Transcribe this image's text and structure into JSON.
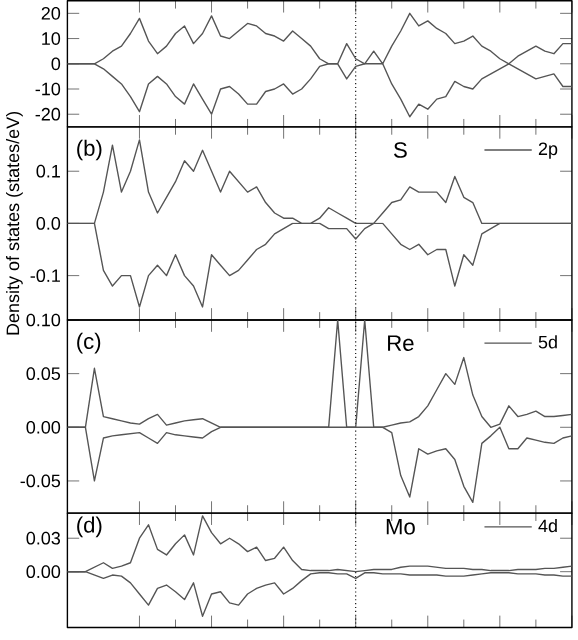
{
  "chart_data": [
    {
      "type": "line",
      "ylim": [
        -25,
        25
      ],
      "yticks": [
        -20,
        -10,
        0,
        10,
        20
      ],
      "categories": [
        null,
        null,
        null,
        null,
        null,
        null,
        null,
        null,
        null,
        null,
        null,
        null,
        null,
        null,
        null,
        null,
        null,
        null,
        null,
        null,
        null,
        null,
        null,
        null,
        null,
        null,
        null,
        null,
        null,
        null,
        null,
        null,
        null,
        null,
        null,
        null,
        null,
        null,
        null,
        null,
        null,
        null,
        null,
        null,
        null,
        null,
        null,
        null,
        null,
        null,
        null,
        null,
        null,
        null,
        null,
        null,
        null
      ],
      "series": [
        {
          "color": "#555555",
          "values": [
            0,
            0,
            0,
            0,
            2,
            5,
            7,
            12,
            18,
            9,
            4,
            7,
            12,
            15,
            8,
            12,
            19,
            11,
            10,
            13,
            16,
            15,
            12,
            11,
            9,
            13,
            10,
            7,
            2,
            0,
            0,
            8,
            2,
            0,
            5,
            0,
            7,
            13,
            20,
            15,
            17,
            14,
            12,
            8,
            9,
            11,
            7,
            5,
            2,
            0,
            3,
            5,
            7,
            5,
            4,
            8,
            8
          ]
        },
        {
          "color": "#555555",
          "values": [
            0,
            0,
            0,
            0,
            -2,
            -5,
            -8,
            -13,
            -19,
            -8,
            -5,
            -8,
            -13,
            -16,
            -8,
            -14,
            -20,
            -10,
            -9,
            -12,
            -16,
            -16,
            -11,
            -10,
            -8,
            -12,
            -10,
            -6,
            -1,
            0,
            0,
            -6,
            -1,
            0,
            0,
            0,
            -8,
            -14,
            -21,
            -16,
            -18,
            -14,
            -13,
            -7,
            -9,
            -10,
            -6,
            -4,
            -2,
            0,
            -2,
            -4,
            -6,
            -5,
            -4,
            -9,
            -9
          ]
        }
      ]
    },
    {
      "type": "line",
      "ylabel": "Density of states (states/eV)",
      "legend_title": "S",
      "annotations": [
        "(b)"
      ],
      "legend": "top right",
      "ylim": [
        -0.185,
        0.185
      ],
      "yticks": [
        {
          "value": -0.1,
          "label": "-0.1"
        },
        {
          "value": 0,
          "label": "0.0"
        },
        {
          "value": 0.1,
          "label": "0.1"
        }
      ],
      "categories": [
        null,
        null,
        null,
        null,
        null,
        null,
        null,
        null,
        null,
        null,
        null,
        null,
        null,
        null,
        null,
        null,
        null,
        null,
        null,
        null,
        null,
        null,
        null,
        null,
        null,
        null,
        null,
        null,
        null,
        null,
        null,
        null,
        null,
        null,
        null,
        null,
        null,
        null,
        null,
        null,
        null,
        null,
        null,
        null,
        null,
        null,
        null,
        null,
        null,
        null,
        null,
        null,
        null,
        null,
        null,
        null,
        null
      ],
      "series": [
        {
          "name": "2p",
          "color": "#555555",
          "values": [
            0,
            0,
            0,
            0,
            0.06,
            0.15,
            0.06,
            0.1,
            0.16,
            0.06,
            0.02,
            0.05,
            0.08,
            0.12,
            0.1,
            0.14,
            0.1,
            0.06,
            0.1,
            0.08,
            0.06,
            0.07,
            0.04,
            0.02,
            0.01,
            0.01,
            0,
            0,
            0.01,
            0.03,
            0.02,
            0.01,
            0,
            0,
            0,
            0.02,
            0.04,
            0.045,
            0.07,
            0.06,
            0.06,
            0.06,
            0.04,
            0.09,
            0.05,
            0.04,
            0,
            0,
            0,
            0,
            0,
            0,
            0,
            0,
            0,
            0,
            0
          ]
        },
        {
          "color": "#555555",
          "values": [
            0,
            0,
            0,
            0,
            -0.09,
            -0.12,
            -0.1,
            -0.1,
            -0.16,
            -0.1,
            -0.08,
            -0.1,
            -0.06,
            -0.1,
            -0.12,
            -0.16,
            -0.06,
            -0.08,
            -0.1,
            -0.09,
            -0.07,
            -0.05,
            -0.04,
            -0.02,
            -0.01,
            0,
            0,
            0,
            0,
            -0.01,
            -0.01,
            -0.01,
            -0.03,
            -0.01,
            0,
            0,
            -0.02,
            -0.04,
            -0.05,
            -0.04,
            -0.06,
            -0.05,
            -0.05,
            -0.12,
            -0.06,
            -0.08,
            -0.02,
            -0.01,
            0,
            0,
            0,
            0,
            0,
            0,
            0,
            0,
            0
          ]
        }
      ]
    },
    {
      "type": "line",
      "legend_title": "Re",
      "annotations": [
        "(c)"
      ],
      "legend": "top right",
      "ylim": [
        -0.08,
        0.1
      ],
      "yticks": [
        {
          "value": -0.05,
          "label": "-0.05"
        },
        {
          "value": 0,
          "label": "0.00"
        },
        {
          "value": 0.05,
          "label": "0.05"
        },
        {
          "value": 0.1,
          "label": "0.10"
        }
      ],
      "categories": [
        null,
        null,
        null,
        null,
        null,
        null,
        null,
        null,
        null,
        null,
        null,
        null,
        null,
        null,
        null,
        null,
        null,
        null,
        null,
        null,
        null,
        null,
        null,
        null,
        null,
        null,
        null,
        null,
        null,
        null,
        null,
        null,
        null,
        null,
        null,
        null,
        null,
        null,
        null,
        null,
        null,
        null,
        null,
        null,
        null,
        null,
        null,
        null,
        null,
        null,
        null,
        null,
        null,
        null,
        null,
        null,
        null
      ],
      "series": [
        {
          "name": "5d",
          "color": "#555555",
          "values": [
            0,
            0,
            0,
            0.055,
            0.01,
            0.008,
            0.006,
            0.004,
            0.003,
            0.008,
            0.012,
            0.002,
            0.004,
            0.006,
            0.007,
            0.008,
            0.004,
            0,
            0,
            0,
            0,
            0,
            0,
            0,
            0,
            0,
            0,
            0,
            0,
            0,
            0.1,
            0,
            0,
            0.1,
            0,
            0,
            0.002,
            0.004,
            0.005,
            0.01,
            0.02,
            0.035,
            0.05,
            0.04,
            0.065,
            0.03,
            0.01,
            0,
            0.003,
            0.02,
            0.01,
            0.012,
            0.015,
            0.01,
            0.01,
            0.011,
            0.012
          ]
        },
        {
          "color": "#555555",
          "values": [
            0,
            0,
            0,
            -0.05,
            -0.01,
            -0.008,
            -0.007,
            -0.006,
            -0.005,
            -0.01,
            -0.015,
            -0.005,
            -0.007,
            -0.008,
            -0.009,
            -0.01,
            -0.004,
            0,
            0,
            0,
            0,
            0,
            0,
            0,
            0,
            0,
            0,
            0,
            0,
            0,
            0,
            0,
            0,
            0,
            0,
            0,
            -0.005,
            -0.045,
            -0.065,
            -0.02,
            -0.025,
            -0.022,
            -0.02,
            -0.03,
            -0.055,
            -0.07,
            -0.015,
            -0.008,
            0,
            -0.02,
            -0.02,
            -0.01,
            -0.012,
            -0.014,
            -0.015,
            -0.01,
            -0.008
          ]
        }
      ]
    },
    {
      "type": "line",
      "legend_title": "Mo",
      "annotations": [
        "(d)"
      ],
      "legend": "top right",
      "ylim": [
        -0.05,
        0.0525
      ],
      "yticks": [
        {
          "value": 0,
          "label": "0.00"
        },
        {
          "value": 0.03,
          "label": "0.03"
        }
      ],
      "categories": [
        null,
        null,
        null,
        null,
        null,
        null,
        null,
        null,
        null,
        null,
        null,
        null,
        null,
        null,
        null,
        null,
        null,
        null,
        null,
        null,
        null,
        null,
        null,
        null,
        null,
        null,
        null,
        null,
        null,
        null,
        null,
        null,
        null,
        null,
        null,
        null,
        null,
        null,
        null,
        null,
        null,
        null,
        null,
        null,
        null,
        null,
        null,
        null,
        null,
        null,
        null,
        null,
        null,
        null,
        null,
        null,
        null
      ],
      "series": [
        {
          "name": "4d",
          "color": "#555555",
          "values": [
            0,
            0,
            0,
            0.004,
            0.008,
            0.003,
            0.005,
            0.008,
            0.03,
            0.042,
            0.02,
            0.015,
            0.025,
            0.033,
            0.015,
            0.05,
            0.035,
            0.025,
            0.03,
            0.025,
            0.018,
            0.022,
            0.01,
            0.012,
            0.022,
            0.01,
            0.002,
            0.001,
            0.001,
            0.001,
            0.002,
            0.001,
            0,
            0.001,
            0.002,
            0.002,
            0.002,
            0.004,
            0.005,
            0.005,
            0.005,
            0.004,
            0.003,
            0.003,
            0.003,
            0.002,
            0.002,
            0.001,
            0.001,
            0.001,
            0.002,
            0.002,
            0.002,
            0.003,
            0.003,
            0.004,
            0.005
          ]
        },
        {
          "color": "#555555",
          "values": [
            0,
            0,
            0,
            -0.003,
            -0.006,
            -0.003,
            -0.004,
            -0.01,
            -0.02,
            -0.03,
            -0.015,
            -0.012,
            -0.018,
            -0.025,
            -0.01,
            -0.04,
            -0.02,
            -0.018,
            -0.028,
            -0.03,
            -0.02,
            -0.015,
            -0.012,
            -0.01,
            -0.02,
            -0.015,
            -0.008,
            -0.002,
            -0.001,
            -0.001,
            -0.002,
            -0.002,
            -0.006,
            -0.001,
            -0.001,
            -0.002,
            -0.002,
            -0.002,
            -0.003,
            -0.003,
            -0.003,
            -0.003,
            -0.004,
            -0.004,
            -0.004,
            -0.003,
            -0.002,
            -0.001,
            -0.001,
            -0.001,
            -0.002,
            -0.002,
            -0.002,
            -0.003,
            -0.003,
            -0.004,
            -0.004
          ]
        }
      ]
    }
  ]
}
